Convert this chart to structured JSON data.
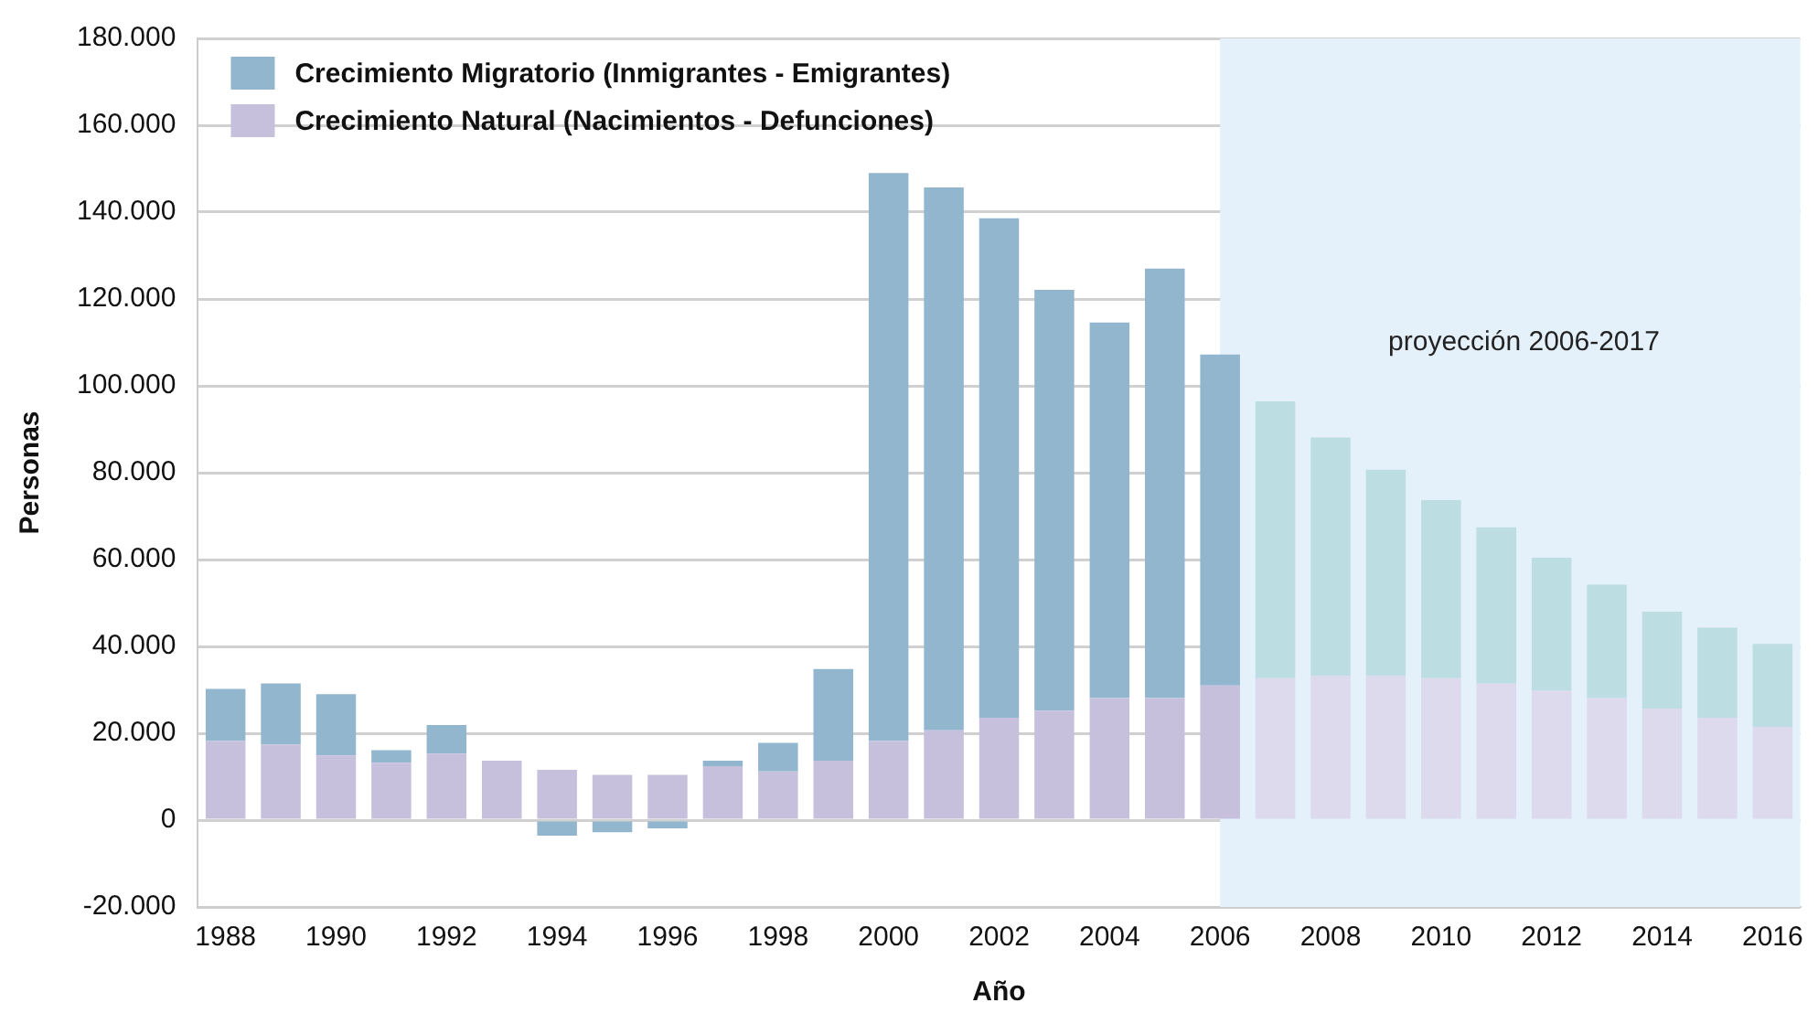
{
  "chart_data": {
    "type": "bar",
    "stacked": true,
    "xlabel": "Año",
    "ylabel": "Personas",
    "categories": [
      "1988",
      null,
      "1990",
      null,
      "1992",
      null,
      "1994",
      null,
      "1996",
      null,
      "1998",
      null,
      "2000",
      null,
      "2002",
      null,
      "2004",
      null,
      "2006",
      null,
      "2008",
      null,
      "2010",
      null,
      "2012",
      null,
      "2014",
      null,
      "2016"
    ],
    "series": [
      {
        "name": "Crecimiento Natural (Nacimientos - Defunciones)",
        "color": "#c6c0dd",
        "colors": [
          "#c6c0dd",
          "#c6c0dd",
          "#c6c0dd",
          "#c6c0dd",
          "#c6c0dd",
          "#c6c0dd",
          "#c6c0dd",
          "#c6c0dd",
          "#c6c0dd",
          "#c6c0dd",
          "#c6c0dd",
          "#c6c0dd",
          "#c6c0dd",
          "#c6c0dd",
          "#c6c0dd",
          "#c6c0dd",
          "#c6c0dd",
          "#c6c0dd",
          "#c6c0dd",
          "#dcdaec",
          "#dcdaec",
          "#dcdaec",
          "#dcdaec",
          "#dcdaec",
          "#dcdaec",
          "#dcdaec",
          "#dcdaec",
          "#dcdaec",
          "#dcdaec"
        ],
        "values": [
          18200,
          17400,
          14900,
          13200,
          15300,
          13700,
          11600,
          10400,
          10400,
          12400,
          11200,
          13700,
          18200,
          20700,
          23600,
          25200,
          28100,
          28100,
          31000,
          32700,
          33200,
          33200,
          32700,
          31400,
          29800,
          28100,
          25700,
          23600,
          21500
        ]
      },
      {
        "name": "Crecimiento Migratorio (Inmigrantes - Emigrantes)",
        "color": "#93b6cf",
        "colors": [
          "#93b6cf",
          "#93b6cf",
          "#93b6cf",
          "#93b6cf",
          "#93b6cf",
          "#93b6cf",
          "#93b6cf",
          "#93b6cf",
          "#93b6cf",
          "#93b6cf",
          "#93b6cf",
          "#93b6cf",
          "#93b6cf",
          "#93b6cf",
          "#93b6cf",
          "#93b6cf",
          "#93b6cf",
          "#93b6cf",
          "#93b6cf",
          "#bcdde1",
          "#bcdde1",
          "#bcdde1",
          "#bcdde1",
          "#bcdde1",
          "#bcdde1",
          "#bcdde1",
          "#bcdde1",
          "#bcdde1",
          "#bcdde1"
        ],
        "values": [
          12000,
          14100,
          14100,
          2900,
          6600,
          0,
          -3600,
          -2800,
          -1900,
          1300,
          6600,
          21100,
          130800,
          125000,
          115000,
          96900,
          86500,
          98900,
          76200,
          63700,
          54900,
          47500,
          41000,
          36000,
          30600,
          26100,
          22300,
          20700,
          19100
        ]
      }
    ],
    "ylim": [
      -20000,
      180000
    ],
    "yticks": [
      {
        "value": -20000,
        "label": "-20.000"
      },
      {
        "value": 0,
        "label": "0"
      },
      {
        "value": 20000,
        "label": "20.000"
      },
      {
        "value": 40000,
        "label": "40.000"
      },
      {
        "value": 60000,
        "label": "60.000"
      },
      {
        "value": 80000,
        "label": "80.000"
      },
      {
        "value": 100000,
        "label": "100.000"
      },
      {
        "value": 120000,
        "label": "120.000"
      },
      {
        "value": 140000,
        "label": "140.000"
      },
      {
        "value": 160000,
        "label": "160.000"
      },
      {
        "value": 180000,
        "label": "180.000"
      }
    ],
    "bands": [
      {
        "axis": "x",
        "from": "2006",
        "to": "2016",
        "label": "proyección 2006-2017",
        "color": "#e4f0fa"
      }
    ],
    "grid": "y",
    "legend": "top left"
  }
}
